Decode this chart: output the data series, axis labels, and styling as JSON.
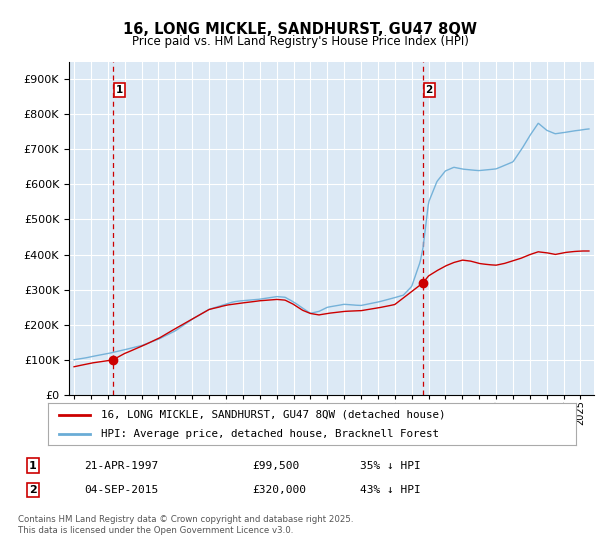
{
  "title": "16, LONG MICKLE, SANDHURST, GU47 8QW",
  "subtitle": "Price paid vs. HM Land Registry's House Price Index (HPI)",
  "legend_line1": "16, LONG MICKLE, SANDHURST, GU47 8QW (detached house)",
  "legend_line2": "HPI: Average price, detached house, Bracknell Forest",
  "footnote": "Contains HM Land Registry data © Crown copyright and database right 2025.\nThis data is licensed under the Open Government Licence v3.0.",
  "sale1_date": "21-APR-1997",
  "sale1_price": "£99,500",
  "sale1_hpi": "35% ↓ HPI",
  "sale2_date": "04-SEP-2015",
  "sale2_price": "£320,000",
  "sale2_hpi": "43% ↓ HPI",
  "sale1_year": 1997.3,
  "sale2_year": 2015.67,
  "sale1_price_val": 99500,
  "sale2_price_val": 320000,
  "hpi_color": "#6aacd6",
  "sale_color": "#cc0000",
  "vline_color": "#cc0000",
  "plot_bg_color": "#dce9f5",
  "grid_color": "#ffffff",
  "ylim_max": 950000,
  "xlim_start": 1994.7,
  "xlim_end": 2025.8
}
